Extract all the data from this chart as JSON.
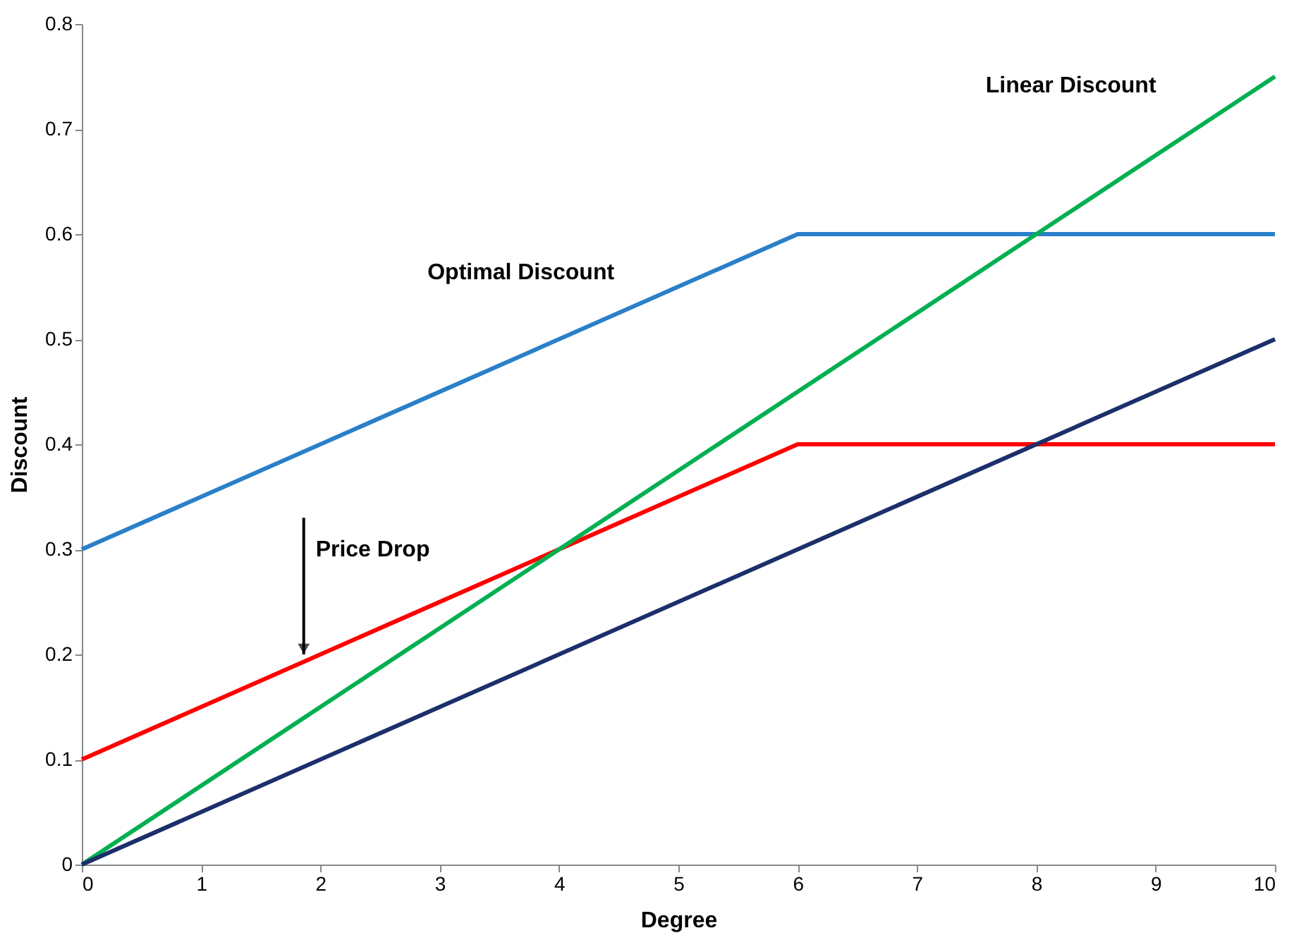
{
  "chart_data": {
    "type": "line",
    "xlabel": "Degree",
    "ylabel": "Discount",
    "xlim": [
      0,
      10
    ],
    "xticks": [
      0,
      1,
      2,
      3,
      4,
      5,
      6,
      7,
      8,
      9,
      10
    ],
    "ylim": [
      0,
      0.8
    ],
    "yticks": [
      0,
      0.1,
      0.2,
      0.3,
      0.4,
      0.5,
      0.6,
      0.7,
      0.8
    ],
    "grid": false,
    "legend": false,
    "marker": "none",
    "line_style": "solid",
    "series": [
      {
        "name": "Optimal Discount",
        "color": "#2a7fc9",
        "x": [
          0,
          6,
          10
        ],
        "values": [
          0.3,
          0.6,
          0.6
        ]
      },
      {
        "color": "#ff0000",
        "x": [
          0,
          6,
          10
        ],
        "values": [
          0.1,
          0.4,
          0.4
        ]
      },
      {
        "name": "Linear Discount",
        "color": "#00b050",
        "x": [
          0,
          10
        ],
        "values": [
          0,
          0.75
        ]
      },
      {
        "color": "#1c2f6b",
        "x": [
          0,
          10
        ],
        "values": [
          0,
          0.5
        ]
      }
    ],
    "annotations": [
      {
        "text": "Price Drop",
        "x": 1.86,
        "y": 0.2
      }
    ]
  }
}
